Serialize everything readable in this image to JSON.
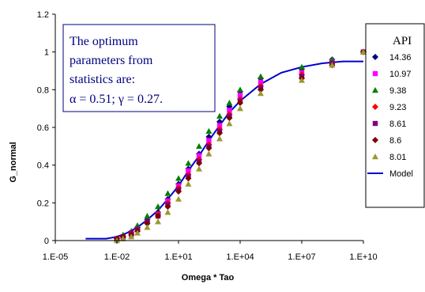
{
  "colors": {
    "axis": "#000000",
    "model": "#0000cc",
    "note_border": "#000080",
    "note_text": "#000080"
  },
  "annotation": {
    "lines": [
      "The optimum",
      "parameters from",
      "statistics are:",
      "α = 0.51;  γ = 0.27."
    ]
  },
  "chart_data": {
    "type": "scatter",
    "title": "",
    "xlabel": "Omega * Tao",
    "ylabel": "G_normal",
    "x_scale": "log",
    "xlim": [
      1e-05,
      10000000000
    ],
    "ylim": [
      0,
      1.2
    ],
    "x_ticks": [
      1e-05,
      0.01,
      10,
      10000,
      10000000,
      10000000000
    ],
    "x_tick_labels": [
      "1.E-05",
      "1.E-02",
      "1.E+01",
      "1.E+04",
      "1.E+07",
      "1.E+10"
    ],
    "y_ticks": [
      0,
      0.2,
      0.4,
      0.6,
      0.8,
      1,
      1.2
    ],
    "y_tick_labels": [
      "0",
      "0.2",
      "0.4",
      "0.6",
      "0.8",
      "1",
      "1.2"
    ],
    "legend_title": "API",
    "legend_position": "right",
    "series": [
      {
        "name": "14.36",
        "marker": "diamond",
        "color": "#000080",
        "x": [
          0.01,
          0.02,
          0.05,
          0.1,
          0.3,
          1,
          3,
          10,
          30,
          100,
          300,
          1000,
          3000,
          10000,
          100000,
          10000000,
          300000000,
          10000000000
        ],
        "y": [
          0.01,
          0.02,
          0.04,
          0.07,
          0.11,
          0.15,
          0.22,
          0.3,
          0.38,
          0.46,
          0.55,
          0.63,
          0.71,
          0.79,
          0.86,
          0.91,
          0.96,
          1.0
        ]
      },
      {
        "name": "10.97",
        "marker": "square",
        "color": "#ff00ff",
        "x": [
          0.01,
          0.02,
          0.05,
          0.1,
          0.3,
          1,
          3,
          10,
          30,
          100,
          300,
          1000,
          3000,
          10000,
          100000,
          10000000,
          300000000,
          10000000000
        ],
        "y": [
          0.01,
          0.02,
          0.03,
          0.06,
          0.1,
          0.14,
          0.21,
          0.29,
          0.37,
          0.45,
          0.53,
          0.61,
          0.69,
          0.77,
          0.84,
          0.89,
          0.95,
          1.0
        ]
      },
      {
        "name": "9.38",
        "marker": "triangle",
        "color": "#008000",
        "x": [
          0.01,
          0.02,
          0.05,
          0.1,
          0.3,
          1,
          3,
          10,
          30,
          100,
          300,
          1000,
          3000,
          10000,
          100000,
          10000000,
          300000000,
          10000000000
        ],
        "y": [
          0.01,
          0.03,
          0.05,
          0.08,
          0.13,
          0.18,
          0.25,
          0.33,
          0.41,
          0.5,
          0.58,
          0.66,
          0.73,
          0.8,
          0.87,
          0.92,
          0.96,
          1.0
        ]
      },
      {
        "name": "9.23",
        "marker": "diamond",
        "color": "#ff0000",
        "x": [
          0.01,
          0.02,
          0.05,
          0.1,
          0.3,
          1,
          3,
          10,
          30,
          100,
          300,
          1000,
          3000,
          10000,
          100000,
          10000000,
          300000000,
          10000000000
        ],
        "y": [
          0.01,
          0.02,
          0.04,
          0.06,
          0.1,
          0.14,
          0.2,
          0.28,
          0.35,
          0.43,
          0.51,
          0.59,
          0.67,
          0.75,
          0.82,
          0.88,
          0.94,
          1.0
        ]
      },
      {
        "name": "8.61",
        "marker": "square",
        "color": "#800080",
        "x": [
          0.01,
          0.02,
          0.05,
          0.1,
          0.3,
          1,
          3,
          10,
          30,
          100,
          300,
          1000,
          3000,
          10000,
          100000,
          10000000,
          300000000,
          10000000000
        ],
        "y": [
          0.01,
          0.02,
          0.04,
          0.06,
          0.1,
          0.13,
          0.19,
          0.27,
          0.34,
          0.42,
          0.5,
          0.58,
          0.66,
          0.74,
          0.81,
          0.87,
          0.94,
          1.0
        ]
      },
      {
        "name": "8.6",
        "marker": "diamond",
        "color": "#800000",
        "x": [
          0.01,
          0.02,
          0.05,
          0.1,
          0.3,
          1,
          3,
          10,
          30,
          100,
          300,
          1000,
          3000,
          10000,
          100000,
          10000000,
          300000000,
          10000000000
        ],
        "y": [
          0.01,
          0.02,
          0.03,
          0.05,
          0.09,
          0.13,
          0.18,
          0.26,
          0.33,
          0.41,
          0.49,
          0.57,
          0.65,
          0.73,
          0.8,
          0.86,
          0.93,
          1.0
        ]
      },
      {
        "name": "8.01",
        "marker": "triangle",
        "color": "#999933",
        "x": [
          0.01,
          0.02,
          0.05,
          0.1,
          0.3,
          1,
          3,
          10,
          30,
          100,
          300,
          1000,
          3000,
          10000,
          100000,
          10000000,
          300000000,
          10000000000
        ],
        "y": [
          0.0,
          0.01,
          0.02,
          0.04,
          0.07,
          0.1,
          0.15,
          0.22,
          0.3,
          0.38,
          0.46,
          0.54,
          0.62,
          0.7,
          0.78,
          0.85,
          0.93,
          1.0
        ]
      },
      {
        "name": "Model",
        "marker": "line",
        "color": "#0000cc",
        "x": [
          0.0003,
          0.001,
          0.003,
          0.01,
          0.03,
          0.1,
          0.3,
          1,
          3,
          10,
          30,
          100,
          300,
          1000,
          3000,
          10000,
          100000,
          1000000,
          10000000,
          100000000,
          1000000000,
          10000000000
        ],
        "y": [
          0.01,
          0.01,
          0.01,
          0.02,
          0.04,
          0.07,
          0.11,
          0.16,
          0.22,
          0.29,
          0.37,
          0.45,
          0.53,
          0.61,
          0.68,
          0.74,
          0.83,
          0.89,
          0.92,
          0.94,
          0.95,
          0.95
        ]
      }
    ]
  }
}
